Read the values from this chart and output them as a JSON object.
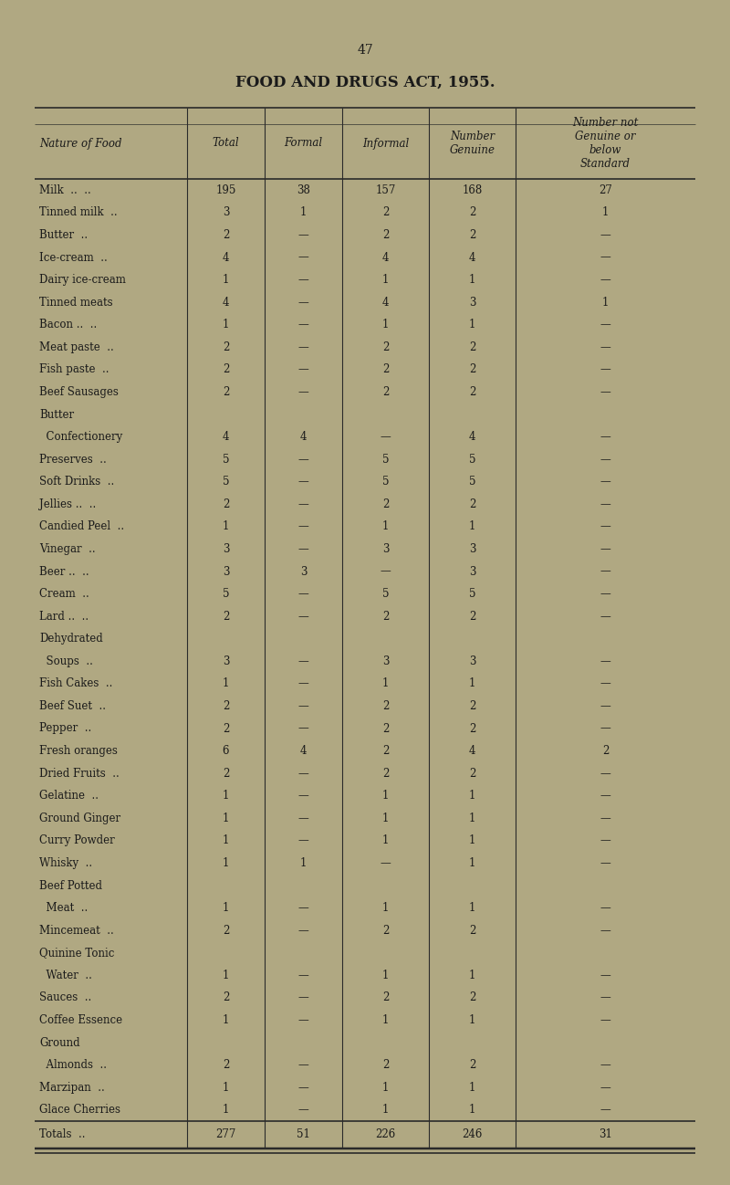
{
  "page_number": "47",
  "title": "FOOD AND DRUGS ACT, 1955.",
  "background_color": "#b0a882",
  "col_headers": [
    "Nature of Food",
    "Total",
    "Formal",
    "Informal",
    "Number\nGenuine",
    "Number not\nGenuine or\nbelow\nStandard"
  ],
  "rows": [
    [
      "Milk  ..  ..",
      "195",
      "38",
      "157",
      "168",
      "27"
    ],
    [
      "Tinned milk  ..",
      "3",
      "1",
      "2",
      "2",
      "1"
    ],
    [
      "Butter  ..",
      "2",
      "—",
      "2",
      "2",
      "—"
    ],
    [
      "Ice-cream  ..",
      "4",
      "—",
      "4",
      "4",
      "—"
    ],
    [
      "Dairy ice-cream",
      "1",
      "—",
      "1",
      "1",
      "—"
    ],
    [
      "Tinned meats",
      "4",
      "—",
      "4",
      "3",
      "1"
    ],
    [
      "Bacon ..  ..",
      "1",
      "—",
      "1",
      "1",
      "—"
    ],
    [
      "Meat paste  ..",
      "2",
      "—",
      "2",
      "2",
      "—"
    ],
    [
      "Fish paste  ..",
      "2",
      "—",
      "2",
      "2",
      "—"
    ],
    [
      "Beef Sausages",
      "2",
      "—",
      "2",
      "2",
      "—"
    ],
    [
      "Butter",
      "",
      "",
      "",
      "",
      ""
    ],
    [
      "  Confectionery",
      "4",
      "4",
      "—",
      "4",
      "—"
    ],
    [
      "Preserves  ..",
      "5",
      "—",
      "5",
      "5",
      "—"
    ],
    [
      "Soft Drinks  ..",
      "5",
      "—",
      "5",
      "5",
      "—"
    ],
    [
      "Jellies ..  ..",
      "2",
      "—",
      "2",
      "2",
      "—"
    ],
    [
      "Candied Peel  ..",
      "1",
      "—",
      "1",
      "1",
      "—"
    ],
    [
      "Vinegar  ..",
      "3",
      "—",
      "3",
      "3",
      "—"
    ],
    [
      "Beer ..  ..",
      "3",
      "3",
      "—",
      "3",
      "—"
    ],
    [
      "Cream  ..",
      "5",
      "—",
      "5",
      "5",
      "—"
    ],
    [
      "Lard ..  ..",
      "2",
      "—",
      "2",
      "2",
      "—"
    ],
    [
      "Dehydrated",
      "",
      "",
      "",
      "",
      ""
    ],
    [
      "  Soups  ..",
      "3",
      "—",
      "3",
      "3",
      "—"
    ],
    [
      "Fish Cakes  ..",
      "1",
      "—",
      "1",
      "1",
      "—"
    ],
    [
      "Beef Suet  ..",
      "2",
      "—",
      "2",
      "2",
      "—"
    ],
    [
      "Pepper  ..",
      "2",
      "—",
      "2",
      "2",
      "—"
    ],
    [
      "Fresh oranges",
      "6",
      "4",
      "2",
      "4",
      "2"
    ],
    [
      "Dried Fruits  ..",
      "2",
      "—",
      "2",
      "2",
      "—"
    ],
    [
      "Gelatine  ..",
      "1",
      "—",
      "1",
      "1",
      "—"
    ],
    [
      "Ground Ginger",
      "1",
      "—",
      "1",
      "1",
      "—"
    ],
    [
      "Curry Powder",
      "1",
      "—",
      "1",
      "1",
      "—"
    ],
    [
      "Whisky  ..",
      "1",
      "1",
      "—",
      "1",
      "—"
    ],
    [
      "Beef Potted",
      "",
      "",
      "",
      "",
      ""
    ],
    [
      "  Meat  ..",
      "1",
      "—",
      "1",
      "1",
      "—"
    ],
    [
      "Mincemeat  ..",
      "2",
      "—",
      "2",
      "2",
      "—"
    ],
    [
      "Quinine Tonic",
      "",
      "",
      "",
      "",
      ""
    ],
    [
      "  Water  ..",
      "1",
      "—",
      "1",
      "1",
      "—"
    ],
    [
      "Sauces  ..",
      "2",
      "—",
      "2",
      "2",
      "—"
    ],
    [
      "Coffee Essence",
      "1",
      "—",
      "1",
      "1",
      "—"
    ],
    [
      "Ground",
      "",
      "",
      "",
      "",
      ""
    ],
    [
      "  Almonds  ..",
      "2",
      "—",
      "2",
      "2",
      "—"
    ],
    [
      "Marzipan  ..",
      "1",
      "—",
      "1",
      "1",
      "—"
    ],
    [
      "Glace Cherries",
      "1",
      "—",
      "1",
      "1",
      "—"
    ],
    [
      "Totals  ..",
      "277",
      "51",
      "226",
      "246",
      "31"
    ]
  ],
  "text_color": "#1a1a1a",
  "line_color": "#2a2a2a",
  "font_size_title": 12,
  "font_size_header": 8.5,
  "font_size_body": 8.5,
  "font_size_page": 10
}
